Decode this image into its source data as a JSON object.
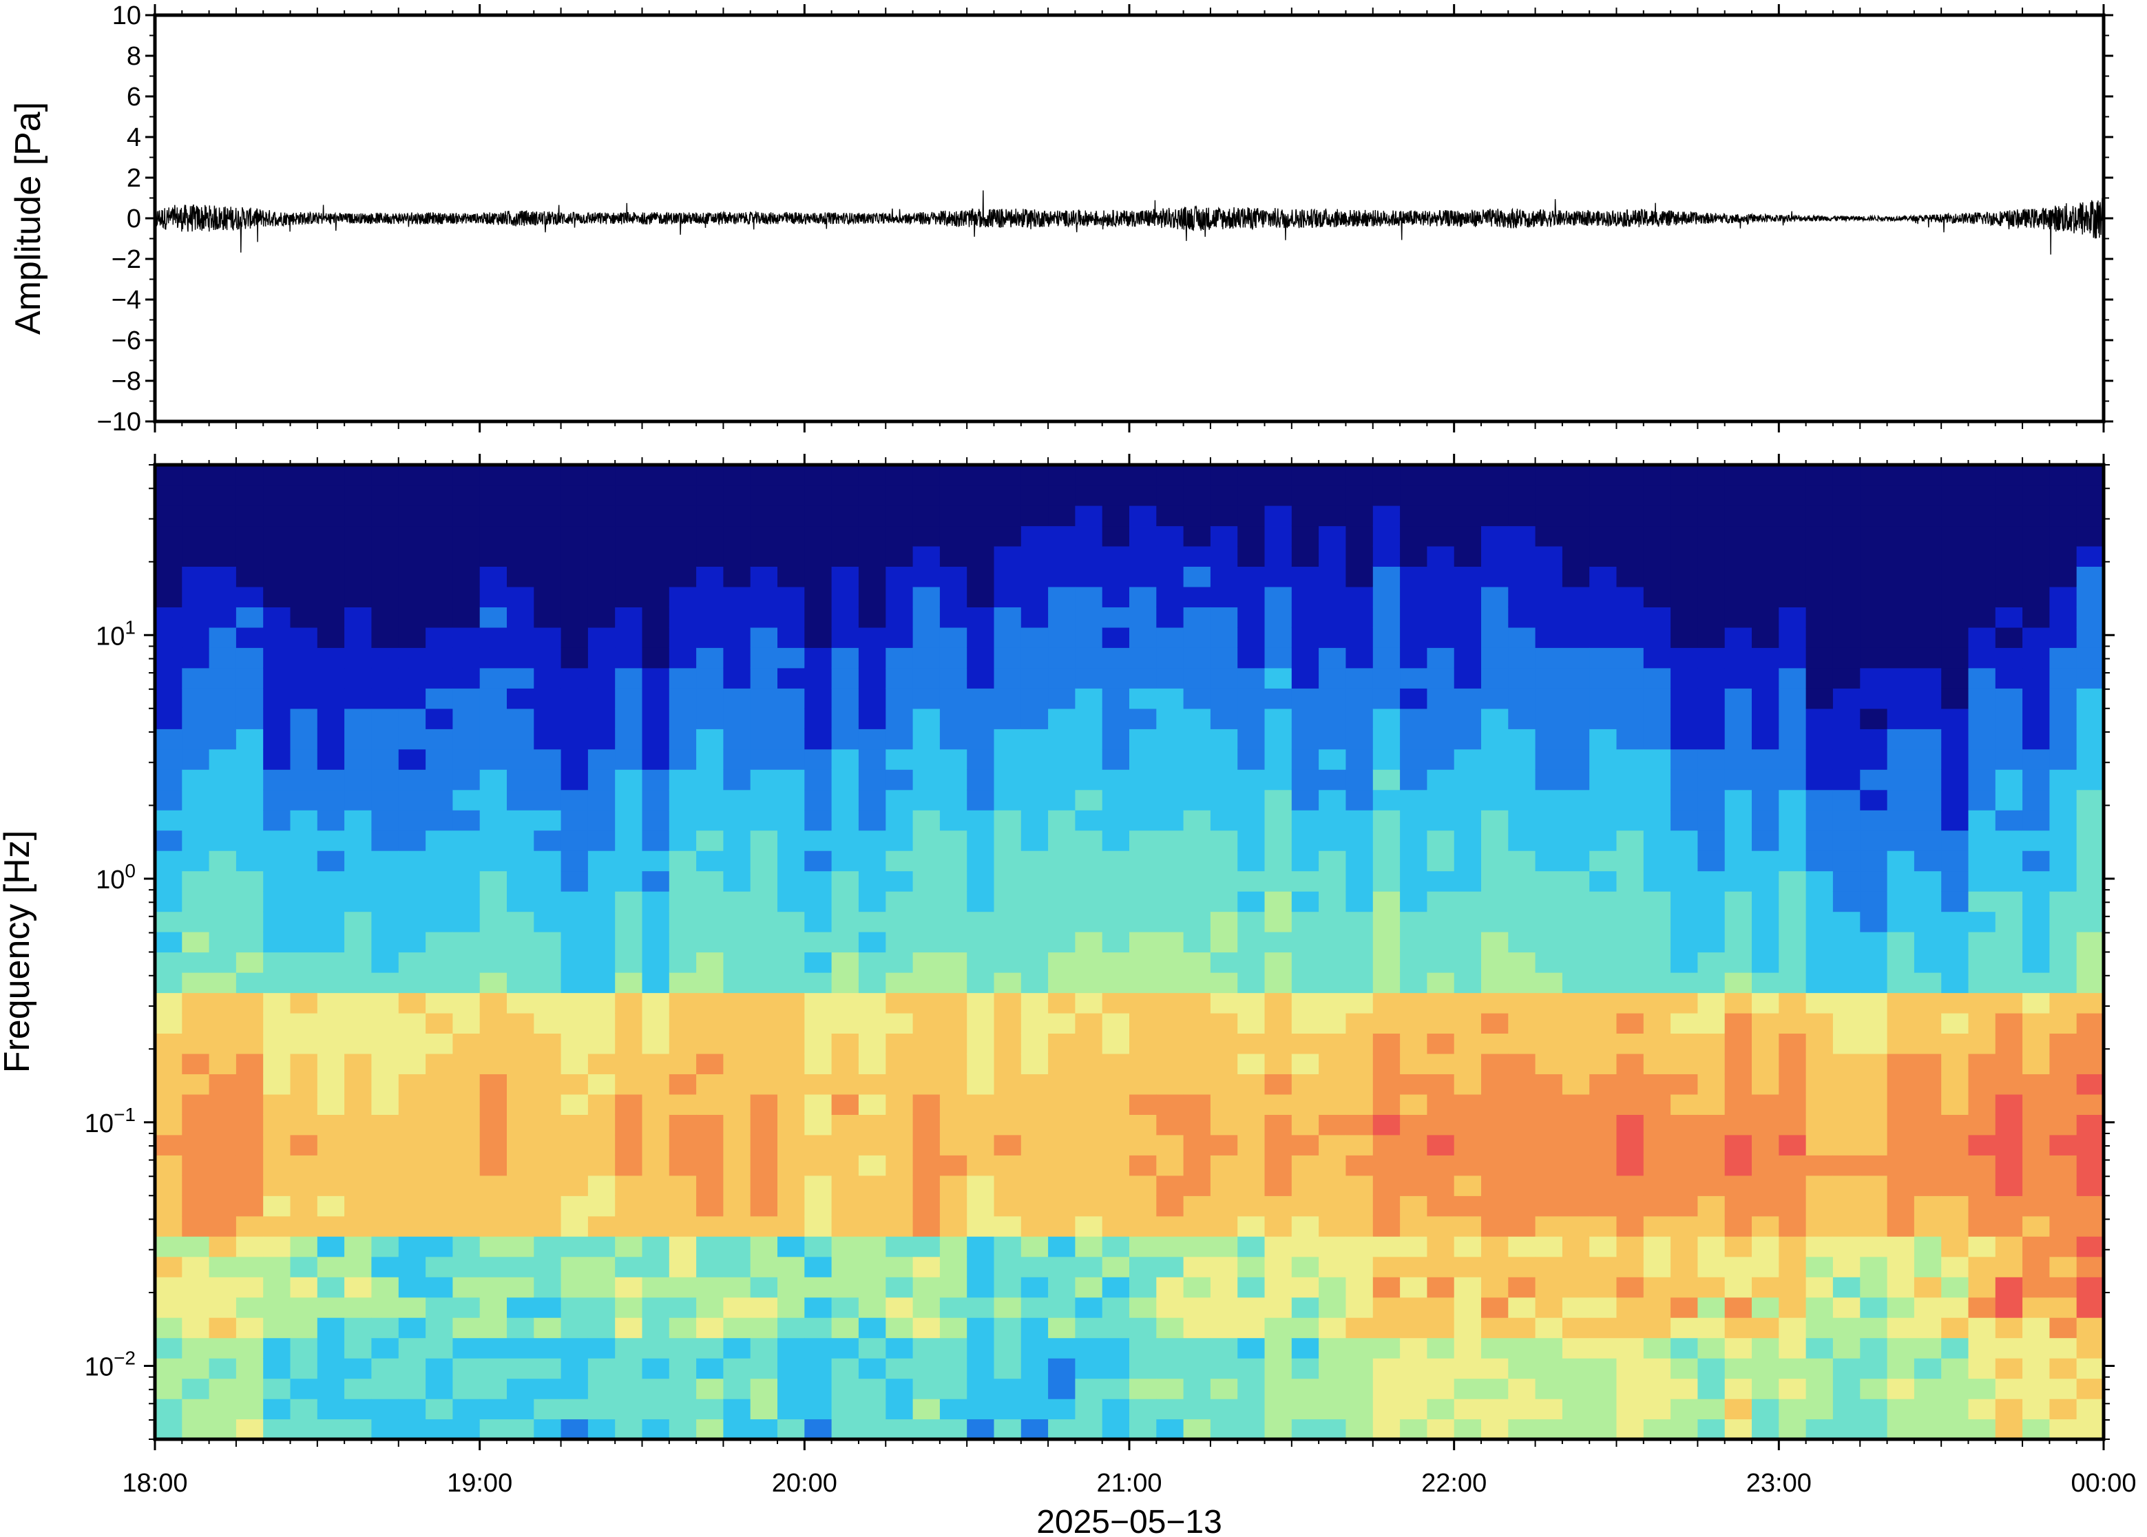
{
  "chart_data": [
    {
      "type": "line",
      "ylabel": "Amplitude [Pa]",
      "ylim": [
        -10,
        10
      ],
      "yticks": [
        "10",
        "8",
        "6",
        "4",
        "2",
        "0",
        "−2",
        "−4",
        "−6",
        "−8",
        "−10"
      ],
      "y_tick_values": [
        10,
        8,
        6,
        4,
        2,
        0,
        -2,
        -4,
        -6,
        -8,
        -10
      ],
      "xlim": [
        "18:00",
        "00:00"
      ],
      "series": [
        {
          "color": "#000000",
          "envelope_hours": [
            0.0,
            0.1,
            0.25,
            0.4,
            0.6,
            0.8,
            1.0,
            1.1,
            1.3,
            1.5,
            1.8,
            2.0,
            2.3,
            2.5,
            2.6,
            2.8,
            3.0,
            3.2,
            3.5,
            3.8,
            4.0,
            4.2,
            4.4,
            4.6,
            4.8,
            5.0,
            5.2,
            5.4,
            5.6,
            5.8,
            6.0
          ],
          "envelope_pa": [
            0.5,
            0.7,
            0.6,
            0.35,
            0.25,
            0.3,
            0.25,
            0.4,
            0.3,
            0.3,
            0.3,
            0.3,
            0.25,
            0.45,
            0.5,
            0.4,
            0.4,
            0.6,
            0.5,
            0.4,
            0.4,
            0.5,
            0.35,
            0.45,
            0.25,
            0.18,
            0.12,
            0.12,
            0.3,
            0.5,
            1.1
          ]
        }
      ]
    },
    {
      "type": "heatmap",
      "xlabel": "2025−05−13",
      "ylabel": "Frequency [Hz]",
      "y_scale": "log",
      "ylim_hz": [
        0.005,
        50
      ],
      "y_ticks": [
        {
          "base": "10",
          "exp": "1",
          "value": 10
        },
        {
          "base": "10",
          "exp": "0",
          "value": 1
        },
        {
          "base": "10",
          "exp": "−1",
          "value": 0.1
        },
        {
          "base": "10",
          "exp": "−2",
          "value": 0.01
        }
      ],
      "x_ticks": [
        "18:00",
        "19:00",
        "20:00",
        "21:00",
        "22:00",
        "23:00",
        "00:00"
      ],
      "x_tick_hours": [
        0,
        1,
        2,
        3,
        4,
        5,
        6
      ],
      "colormap": [
        "#0b0b78",
        "#0c1ec8",
        "#1f7be6",
        "#32c4ee",
        "#6ee0cc",
        "#b2ee9c",
        "#f0ee8c",
        "#f8c860",
        "#f4904c",
        "#ee5850"
      ],
      "upper_cutoff_hours": [
        0.0,
        0.3,
        0.6,
        0.9,
        1.1,
        1.4,
        1.8,
        2.2,
        2.6,
        3.0,
        3.3,
        3.6,
        3.9,
        4.2,
        4.6,
        4.9,
        5.2,
        5.5,
        5.8,
        6.0
      ],
      "upper_cutoff_hz": [
        20,
        16,
        12,
        9,
        12,
        10,
        13,
        16,
        23,
        30,
        30,
        26,
        23,
        24,
        13,
        9,
        7,
        6,
        12,
        22
      ],
      "low_freq_activity_hours": [
        0.0,
        0.4,
        0.8,
        1.2,
        1.6,
        2.0,
        2.4,
        2.8,
        3.2,
        3.6,
        3.9,
        4.2,
        4.5,
        4.8,
        5.1,
        5.4,
        5.6,
        5.8,
        6.0
      ],
      "low_freq_activity_level": [
        0.5,
        0.35,
        0.15,
        0.25,
        0.3,
        0.2,
        0.3,
        0.15,
        0.3,
        0.5,
        0.7,
        0.6,
        0.65,
        0.6,
        0.5,
        0.45,
        0.6,
        0.8,
        0.75
      ]
    }
  ]
}
